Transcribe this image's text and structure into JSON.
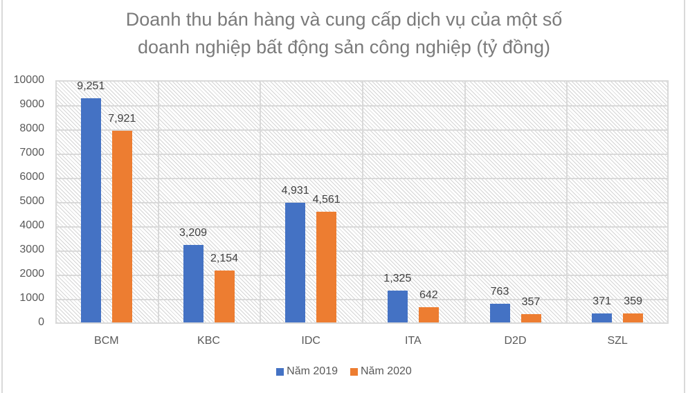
{
  "chart": {
    "title_line1": "Doanh thu bán hàng và cung cấp dịch vụ của một số",
    "title_line2": "doanh nghiệp bất động sản công nghiệp (tỷ đồng)",
    "y_ticks": [
      "0",
      "1000",
      "2000",
      "3000",
      "4000",
      "5000",
      "6000",
      "7000",
      "8000",
      "9000",
      "10000"
    ],
    "categories": [
      "BCM",
      "KBC",
      "IDC",
      "ITA",
      "D2D",
      "SZL"
    ],
    "labels_2019": [
      "9,251",
      "3,209",
      "4,931",
      "1,325",
      "763",
      "371"
    ],
    "labels_2020": [
      "7,921",
      "2,154",
      "4,561",
      "642",
      "357",
      "359"
    ],
    "legend": [
      "Năm 2019",
      "Năm 2020"
    ],
    "colors": {
      "series_2019": "#4472c4",
      "series_2020": "#ed7d31"
    }
  },
  "chart_data": {
    "type": "bar",
    "title": "Doanh thu bán hàng và cung cấp dịch vụ của một số doanh nghiệp bất động sản công nghiệp (tỷ đồng)",
    "categories": [
      "BCM",
      "KBC",
      "IDC",
      "ITA",
      "D2D",
      "SZL"
    ],
    "series": [
      {
        "name": "Năm 2019",
        "color": "#4472c4",
        "values": [
          9251,
          3209,
          4931,
          1325,
          763,
          371
        ]
      },
      {
        "name": "Năm 2020",
        "color": "#ed7d31",
        "values": [
          7921,
          2154,
          4561,
          642,
          357,
          359
        ]
      }
    ],
    "xlabel": "",
    "ylabel": "",
    "ylim": [
      0,
      10000
    ],
    "y_tick_step": 1000,
    "grid": true,
    "legend_position": "bottom",
    "data_labels": true
  }
}
